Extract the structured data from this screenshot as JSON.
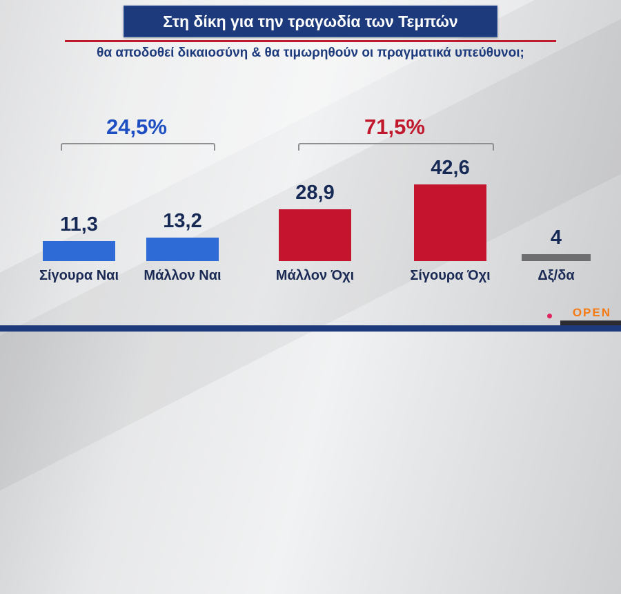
{
  "header": {
    "title": "Στη δίκη για την τραγωδία των Τεμπών",
    "subtitle": "θα αποδοθεί δικαιοσύνη & θα τιμωρηθούν οι πραγματικά υπεύθυνοι;"
  },
  "chart_data": {
    "type": "bar",
    "title": "Στη δίκη για την τραγωδία των Τεμπών",
    "subtitle": "θα αποδοθεί δικαιοσύνη & θα τιμωρηθούν οι πραγματικά υπεύθυνοι;",
    "categories": [
      "Σίγουρα Ναι",
      "Μάλλον Ναι",
      "Μάλλον Όχι",
      "Σίγουρα Όχι",
      "Δξ/δα"
    ],
    "values": [
      11.3,
      13.2,
      28.9,
      42.6,
      4
    ],
    "value_labels": [
      "11,3",
      "13,2",
      "28,9",
      "42,6",
      "4"
    ],
    "bar_colors": [
      "#2e6bd6",
      "#2e6bd6",
      "#c4142e",
      "#c4142e",
      "#6e6e70"
    ],
    "xlabel": "",
    "ylabel": "",
    "ylim": [
      0,
      45
    ],
    "grid": false,
    "groups": [
      {
        "label": "24,5%",
        "color": "#1d4ec2",
        "covers": [
          "Σίγουρα Ναι",
          "Μάλλον Ναι"
        ]
      },
      {
        "label": "71,5%",
        "color": "#c0182c",
        "covers": [
          "Μάλλον Όχι",
          "Σίγουρα Όχι"
        ]
      }
    ]
  },
  "branding": {
    "channel_logo": "OPEN"
  }
}
